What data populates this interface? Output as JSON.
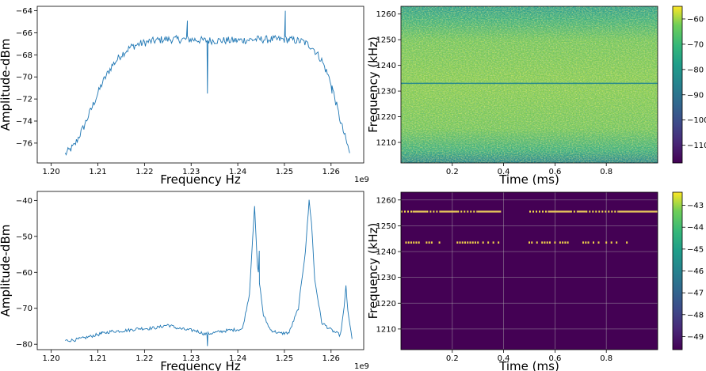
{
  "chart_data": [
    {
      "type": "line",
      "panel": "top-left",
      "xlabel": "Frequency Hz",
      "ylabel": "Amplitude-dBm",
      "x_offset_label": "1e9",
      "xlim": [
        1.197,
        1.267
      ],
      "ylim": [
        -77.8,
        -63.6
      ],
      "xticks": [
        1.2,
        1.21,
        1.22,
        1.23,
        1.24,
        1.25,
        1.26
      ],
      "xtick_labels": [
        "1.20",
        "1.21",
        "1.22",
        "1.23",
        "1.24",
        "1.25",
        "1.26"
      ],
      "yticks": [
        -76,
        -74,
        -72,
        -70,
        -68,
        -66,
        -64
      ],
      "ytick_labels": [
        "−76",
        "−74",
        "−72",
        "−70",
        "−68",
        "−66",
        "−64"
      ],
      "color": "#1f77b4",
      "x": [
        1.203,
        1.205,
        1.207,
        1.209,
        1.211,
        1.213,
        1.215,
        1.217,
        1.219,
        1.221,
        1.224,
        1.227,
        1.23,
        1.233,
        1.236,
        1.24,
        1.244,
        1.248,
        1.251,
        1.254,
        1.256,
        1.258,
        1.26,
        1.262,
        1.264
      ],
      "y": [
        -77,
        -76.2,
        -74.5,
        -72.5,
        -70.5,
        -69,
        -68,
        -67.3,
        -67,
        -66.8,
        -66.6,
        -66.6,
        -66.6,
        -66.7,
        -66.7,
        -66.7,
        -66.6,
        -66.6,
        -66.6,
        -66.8,
        -67.3,
        -68.5,
        -70.5,
        -74,
        -76.9
      ],
      "spikes": [
        {
          "x": 1.2292,
          "y": -64.9
        },
        {
          "x": 1.2335,
          "y": -71.5
        },
        {
          "x": 1.2502,
          "y": -64
        },
        {
          "x": 1.2602,
          "y": -71.5
        }
      ]
    },
    {
      "type": "heatmap",
      "panel": "top-right",
      "xlabel": "Time (ms)",
      "ylabel": "Frequency (kHz)",
      "xlim": [
        0,
        1.0
      ],
      "ylim": [
        1202,
        1263
      ],
      "xticks": [
        0.2,
        0.4,
        0.6,
        0.8
      ],
      "xtick_labels": [
        "0.2",
        "0.4",
        "0.6",
        "0.8"
      ],
      "yticks": [
        1210,
        1220,
        1230,
        1240,
        1250,
        1260
      ],
      "ytick_labels": [
        "1210",
        "1220",
        "1230",
        "1240",
        "1250",
        "1260"
      ],
      "colorbar": {
        "range": [
          -117,
          -55
        ],
        "ticks": [
          -110,
          -100,
          -90,
          -80,
          -70,
          -60
        ],
        "tick_labels": [
          "−110",
          "−100",
          "−90",
          "−80",
          "−70",
          "−60"
        ]
      },
      "features": [
        {
          "kind": "horizontal_line",
          "y": 1233
        }
      ]
    },
    {
      "type": "line",
      "panel": "bottom-left",
      "xlabel": "Frequency Hz",
      "ylabel": "Amplitude-dBm",
      "x_offset_label": "1e9",
      "xlim": [
        1.197,
        1.267
      ],
      "ylim": [
        -81.5,
        -37.5
      ],
      "xticks": [
        1.2,
        1.21,
        1.22,
        1.23,
        1.24,
        1.25,
        1.26
      ],
      "xtick_labels": [
        "1.20",
        "1.21",
        "1.22",
        "1.23",
        "1.24",
        "1.25",
        "1.26"
      ],
      "yticks": [
        -80,
        -70,
        -60,
        -50,
        -40
      ],
      "ytick_labels": [
        "−80",
        "−70",
        "−60",
        "−50",
        "−40"
      ],
      "color": "#1f77b4",
      "x": [
        1.203,
        1.205,
        1.207,
        1.209,
        1.211,
        1.213,
        1.215,
        1.217,
        1.219,
        1.221,
        1.223,
        1.225,
        1.227,
        1.229,
        1.231,
        1.233,
        1.235,
        1.237,
        1.239,
        1.241,
        1.2425,
        1.2432,
        1.2436,
        1.2442,
        1.2455,
        1.247,
        1.249,
        1.251,
        1.253,
        1.2545,
        1.2553,
        1.2558,
        1.2565,
        1.258,
        1.26,
        1.262,
        1.2628,
        1.2632,
        1.2636,
        1.2645
      ],
      "y": [
        -79,
        -78.8,
        -78.3,
        -77.6,
        -77,
        -76.4,
        -76.3,
        -76,
        -75.6,
        -75.6,
        -75.3,
        -74.6,
        -75.5,
        -76,
        -76.2,
        -77.2,
        -76.8,
        -76.3,
        -76,
        -75.8,
        -66,
        -50,
        -42,
        -58,
        -72,
        -76,
        -77,
        -76.8,
        -70,
        -54,
        -40,
        -46,
        -62,
        -74,
        -76,
        -77.5,
        -70,
        -63.5,
        -71,
        -78.5
      ],
      "spikes": [
        {
          "x": 1.2108,
          "y": -76.5
        },
        {
          "x": 1.2335,
          "y": -80.5
        },
        {
          "x": 1.2446,
          "y": -54
        }
      ]
    },
    {
      "type": "heatmap",
      "panel": "bottom-right",
      "xlabel": "Time (ms)",
      "ylabel": "Frequency (kHz)",
      "xlim": [
        0,
        1.0
      ],
      "ylim": [
        1202,
        1263
      ],
      "xticks": [
        0.2,
        0.4,
        0.6,
        0.8
      ],
      "xtick_labels": [
        "0.2",
        "0.4",
        "0.6",
        "0.8"
      ],
      "yticks": [
        1210,
        1220,
        1230,
        1240,
        1250,
        1260
      ],
      "ytick_labels": [
        "1210",
        "1220",
        "1230",
        "1240",
        "1250",
        "1260"
      ],
      "grid": true,
      "colorbar": {
        "range": [
          -49.6,
          -42.4
        ],
        "ticks": [
          -49,
          -48,
          -47,
          -46,
          -45,
          -44,
          -43
        ],
        "tick_labels": [
          "−49",
          "−48",
          "−47",
          "−46",
          "−45",
          "−44",
          "−43"
        ]
      },
      "features": [
        {
          "kind": "segments",
          "y": 1255.5,
          "ranges": [
            [
              0.0,
              0.1
            ],
            [
              0.1,
              0.22
            ],
            [
              0.22,
              0.39
            ],
            [
              0.5,
              0.66
            ],
            [
              0.66,
              0.72
            ],
            [
              0.72,
              1.0
            ]
          ]
        },
        {
          "kind": "dots",
          "y": 1243.5,
          "x": [
            0.02,
            0.03,
            0.04,
            0.05,
            0.06,
            0.07,
            0.1,
            0.11,
            0.12,
            0.15,
            0.22,
            0.23,
            0.24,
            0.25,
            0.26,
            0.27,
            0.28,
            0.29,
            0.3,
            0.32,
            0.34,
            0.36,
            0.38,
            0.5,
            0.51,
            0.53,
            0.55,
            0.56,
            0.57,
            0.58,
            0.6,
            0.62,
            0.63,
            0.64,
            0.65,
            0.71,
            0.72,
            0.73,
            0.75,
            0.77,
            0.8,
            0.82,
            0.84,
            0.88
          ]
        }
      ]
    }
  ]
}
